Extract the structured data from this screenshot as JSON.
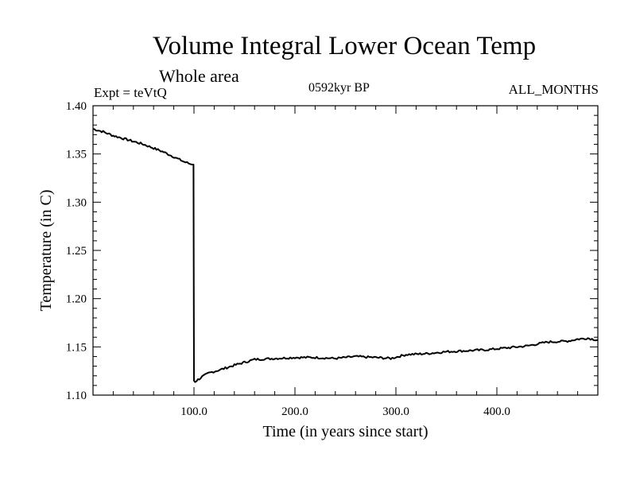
{
  "chart_data": {
    "type": "line",
    "title": "Volume Integral Lower Ocean Temp",
    "subtitle": "Whole area",
    "annotations": {
      "experiment": "Expt = teVtQ",
      "period": "0592kyr BP",
      "months": "ALL_MONTHS"
    },
    "xlabel": "Time (in years since start)",
    "ylabel": "Temperature (in C)",
    "xlim": [
      0,
      500
    ],
    "ylim": [
      1.1,
      1.4
    ],
    "x_ticks": [
      100,
      200,
      300,
      400
    ],
    "x_tick_labels": [
      "100.0",
      "200.0",
      "300.0",
      "400.0"
    ],
    "y_ticks": [
      1.1,
      1.15,
      1.2,
      1.25,
      1.3,
      1.35,
      1.4
    ],
    "y_tick_labels": [
      "1.10",
      "1.15",
      "1.20",
      "1.25",
      "1.30",
      "1.35",
      "1.40"
    ],
    "grid": false,
    "series": [
      {
        "x": [
          0,
          10,
          20,
          30,
          40,
          50,
          60,
          70,
          80,
          90,
          98,
          99.5,
          100,
          101,
          104,
          108,
          115,
          125,
          140,
          150,
          160,
          180,
          200,
          220,
          240,
          260,
          280,
          295,
          310,
          330,
          350,
          370,
          390,
          410,
          430,
          450,
          470,
          480,
          490,
          500
        ],
        "y": [
          1.376,
          1.373,
          1.369,
          1.366,
          1.363,
          1.36,
          1.356,
          1.352,
          1.347,
          1.342,
          1.339,
          1.339,
          1.115,
          1.114,
          1.116,
          1.119,
          1.123,
          1.126,
          1.131,
          1.134,
          1.137,
          1.138,
          1.139,
          1.139,
          1.138,
          1.14,
          1.139,
          1.138,
          1.142,
          1.143,
          1.145,
          1.146,
          1.147,
          1.149,
          1.151,
          1.155,
          1.156,
          1.158,
          1.159,
          1.157
        ]
      }
    ]
  }
}
